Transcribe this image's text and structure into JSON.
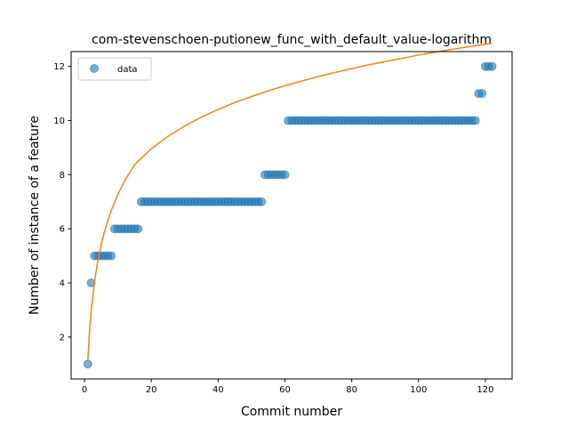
{
  "chart_data": {
    "type": "scatter",
    "title": "com-stevenschoen-putionew_func_with_default_value-logarithm",
    "xlabel": "Commit number",
    "ylabel": "Number of instance of a feature",
    "xlim": [
      -4,
      128
    ],
    "ylim": [
      0.45,
      12.55
    ],
    "xticks": [
      0,
      20,
      40,
      60,
      80,
      100,
      120
    ],
    "yticks": [
      2,
      4,
      6,
      8,
      10,
      12
    ],
    "grid": false,
    "legend": {
      "position": "top-left",
      "entries": [
        "data"
      ]
    },
    "colors": {
      "points": "#1f77b4",
      "fit": "#ff7f0e"
    },
    "series": [
      {
        "name": "data",
        "style": "markers",
        "points": [
          [
            1,
            1
          ],
          [
            2,
            4
          ],
          [
            3,
            5
          ],
          [
            4,
            5
          ],
          [
            5,
            5
          ],
          [
            6,
            5
          ],
          [
            7,
            5
          ],
          [
            8,
            5
          ],
          [
            9,
            6
          ],
          [
            10,
            6
          ],
          [
            11,
            6
          ],
          [
            12,
            6
          ],
          [
            13,
            6
          ],
          [
            14,
            6
          ],
          [
            15,
            6
          ],
          [
            16,
            6
          ],
          [
            17,
            7
          ],
          [
            18,
            7
          ],
          [
            19,
            7
          ],
          [
            20,
            7
          ],
          [
            21,
            7
          ],
          [
            22,
            7
          ],
          [
            23,
            7
          ],
          [
            24,
            7
          ],
          [
            25,
            7
          ],
          [
            26,
            7
          ],
          [
            27,
            7
          ],
          [
            28,
            7
          ],
          [
            29,
            7
          ],
          [
            30,
            7
          ],
          [
            31,
            7
          ],
          [
            32,
            7
          ],
          [
            33,
            7
          ],
          [
            34,
            7
          ],
          [
            35,
            7
          ],
          [
            36,
            7
          ],
          [
            37,
            7
          ],
          [
            38,
            7
          ],
          [
            39,
            7
          ],
          [
            40,
            7
          ],
          [
            41,
            7
          ],
          [
            42,
            7
          ],
          [
            43,
            7
          ],
          [
            44,
            7
          ],
          [
            45,
            7
          ],
          [
            46,
            7
          ],
          [
            47,
            7
          ],
          [
            48,
            7
          ],
          [
            49,
            7
          ],
          [
            50,
            7
          ],
          [
            51,
            7
          ],
          [
            52,
            7
          ],
          [
            53,
            7
          ],
          [
            54,
            8
          ],
          [
            55,
            8
          ],
          [
            56,
            8
          ],
          [
            57,
            8
          ],
          [
            58,
            8
          ],
          [
            59,
            8
          ],
          [
            60,
            8
          ],
          [
            61,
            10
          ],
          [
            62,
            10
          ],
          [
            63,
            10
          ],
          [
            64,
            10
          ],
          [
            65,
            10
          ],
          [
            66,
            10
          ],
          [
            67,
            10
          ],
          [
            68,
            10
          ],
          [
            69,
            10
          ],
          [
            70,
            10
          ],
          [
            71,
            10
          ],
          [
            72,
            10
          ],
          [
            73,
            10
          ],
          [
            74,
            10
          ],
          [
            75,
            10
          ],
          [
            76,
            10
          ],
          [
            77,
            10
          ],
          [
            78,
            10
          ],
          [
            79,
            10
          ],
          [
            80,
            10
          ],
          [
            81,
            10
          ],
          [
            82,
            10
          ],
          [
            83,
            10
          ],
          [
            84,
            10
          ],
          [
            85,
            10
          ],
          [
            86,
            10
          ],
          [
            87,
            10
          ],
          [
            88,
            10
          ],
          [
            89,
            10
          ],
          [
            90,
            10
          ],
          [
            91,
            10
          ],
          [
            92,
            10
          ],
          [
            93,
            10
          ],
          [
            94,
            10
          ],
          [
            95,
            10
          ],
          [
            96,
            10
          ],
          [
            97,
            10
          ],
          [
            98,
            10
          ],
          [
            99,
            10
          ],
          [
            100,
            10
          ],
          [
            101,
            10
          ],
          [
            102,
            10
          ],
          [
            103,
            10
          ],
          [
            104,
            10
          ],
          [
            105,
            10
          ],
          [
            106,
            10
          ],
          [
            107,
            10
          ],
          [
            108,
            10
          ],
          [
            109,
            10
          ],
          [
            110,
            10
          ],
          [
            111,
            10
          ],
          [
            112,
            10
          ],
          [
            113,
            10
          ],
          [
            114,
            10
          ],
          [
            115,
            10
          ],
          [
            116,
            10
          ],
          [
            117,
            10
          ],
          [
            118,
            11
          ],
          [
            119,
            11
          ],
          [
            120,
            12
          ],
          [
            121,
            12
          ],
          [
            122,
            12
          ]
        ]
      },
      {
        "name": "",
        "style": "line",
        "fit": "logarithmic",
        "points": [
          [
            1,
            1.1
          ],
          [
            1.5,
            2.19
          ],
          [
            2,
            2.96
          ],
          [
            3,
            4.05
          ],
          [
            4,
            4.82
          ],
          [
            5,
            5.42
          ],
          [
            6,
            5.91
          ],
          [
            8,
            6.68
          ],
          [
            10,
            7.28
          ],
          [
            12,
            7.77
          ],
          [
            15,
            8.37
          ],
          [
            20,
            8.96
          ],
          [
            25,
            9.42
          ],
          [
            30,
            9.8
          ],
          [
            35,
            10.13
          ],
          [
            40,
            10.41
          ],
          [
            45,
            10.67
          ],
          [
            50,
            10.89
          ],
          [
            55,
            11.1
          ],
          [
            60,
            11.29
          ],
          [
            65,
            11.46
          ],
          [
            70,
            11.63
          ],
          [
            75,
            11.78
          ],
          [
            80,
            11.92
          ],
          [
            85,
            12.06
          ],
          [
            90,
            12.18
          ],
          [
            95,
            12.3
          ],
          [
            100,
            12.42
          ],
          [
            105,
            12.53
          ],
          [
            110,
            12.63
          ],
          [
            115,
            12.73
          ],
          [
            120,
            12.82
          ],
          [
            122,
            12.86
          ]
        ]
      }
    ]
  }
}
